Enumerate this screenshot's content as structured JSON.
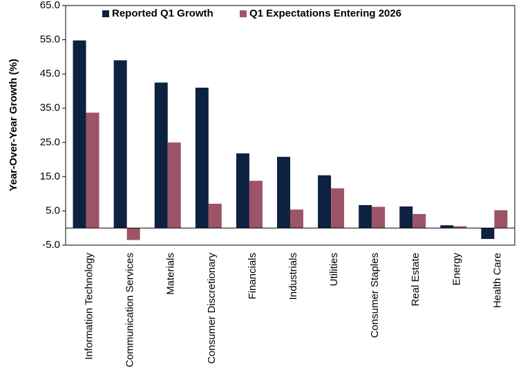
{
  "chart_data": {
    "type": "bar",
    "y_label": "Year-Over-Year Growth (%)",
    "categories": [
      "Information Technology",
      "Communication Services",
      "Materials",
      "Consumer Discretionary",
      "Financials",
      "Industrials",
      "Utilities",
      "Consumer Staples",
      "Real Estate",
      "Energy",
      "Health Care"
    ],
    "series": [
      {
        "name": "Reported Q1 Growth",
        "color": "#0d2240",
        "values": [
          54.8,
          49.0,
          42.5,
          41.0,
          21.8,
          20.8,
          15.4,
          6.7,
          6.3,
          0.8,
          -3.2
        ]
      },
      {
        "name": "Q1 Expectations Entering 2026",
        "color": "#9c5466",
        "values": [
          33.7,
          -3.5,
          25.0,
          7.1,
          13.8,
          5.4,
          11.6,
          6.2,
          4.1,
          0.5,
          5.2
        ]
      }
    ],
    "ylim": [
      -5,
      65
    ],
    "yticks": [
      {
        "value": -5,
        "label": "-5.0"
      },
      {
        "value": 5,
        "label": "5.0"
      },
      {
        "value": 15,
        "label": "15.0"
      },
      {
        "value": 25,
        "label": "25.0"
      },
      {
        "value": 35,
        "label": "35.0"
      },
      {
        "value": 45,
        "label": "45.0"
      },
      {
        "value": 55,
        "label": "55.0"
      },
      {
        "value": 65,
        "label": "65.0"
      }
    ],
    "legend": "top"
  }
}
